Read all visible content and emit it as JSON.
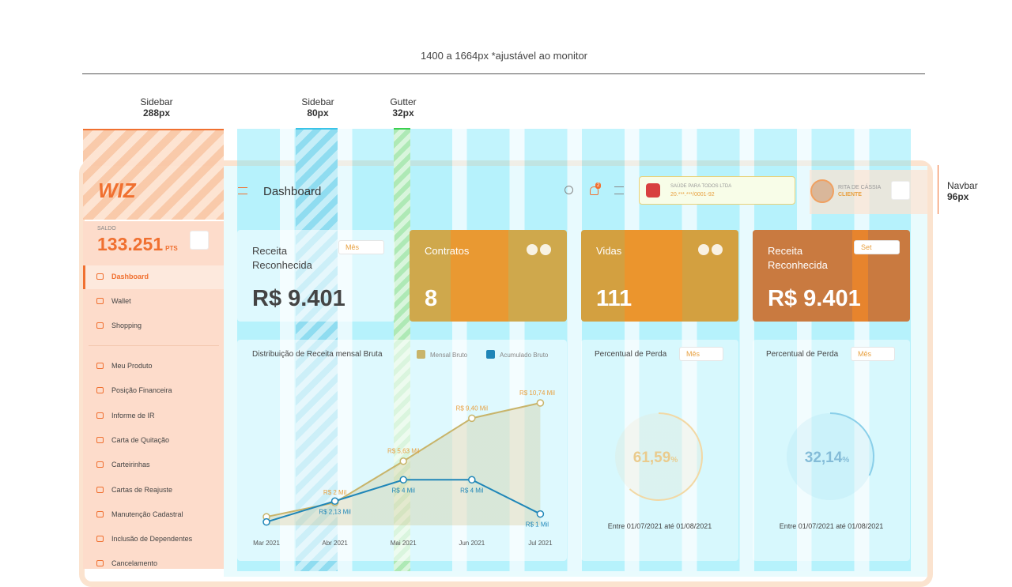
{
  "annotations": {
    "width": "1400 a 1664px *ajustável ao monitor",
    "sidebar_wide": {
      "label": "Sidebar",
      "size": "288px"
    },
    "sidebar_narrow": {
      "label": "Sidebar",
      "size": "80px"
    },
    "gutter": {
      "label": "Gutter",
      "size": "32px"
    },
    "navbar": {
      "label": "Navbar",
      "size": "96px"
    }
  },
  "sidebar": {
    "logo": "WIZ",
    "saldo_label": "SALDO",
    "saldo": "133.251",
    "saldo_unit": "PTS",
    "menu": [
      "Dashboard",
      "Wallet",
      "Shopping"
    ],
    "menu2": [
      "Meu Produto",
      "Posição Financeira",
      "Informe de IR",
      "Carta de Quitação",
      "Carteirinhas",
      "Cartas de Reajuste",
      "Manutenção Cadastral",
      "Inclusão de Dependentes",
      "Cancelamento"
    ]
  },
  "navbar": {
    "title": "Dashboard",
    "notifications": "2",
    "company": "SAÚDE PARA TODOS LTDA",
    "cnpj": "20.***.***/0001-92",
    "user": "RITA DE CÁSSIA",
    "role": "CLIENTE"
  },
  "cards": [
    {
      "title": "Receita Reconhecida",
      "value": "R$ 9.401",
      "select": "Mês"
    },
    {
      "title": "Contratos",
      "value": "8"
    },
    {
      "title": "Vidas",
      "value": "111"
    },
    {
      "title": "Receita Reconhecida",
      "value": "R$ 9.401",
      "select": "Set"
    }
  ],
  "chart_data": {
    "type": "line",
    "title": "Distribuição de Receita mensal Bruta",
    "categories": [
      "Mar 2021",
      "Abr 2021",
      "Mai 2021",
      "Jun 2021",
      "Jul 2021"
    ],
    "series": [
      {
        "name": "Mensal Bruto",
        "color": "#c8b46a",
        "values": [
          0.75,
          2,
          5.63,
          9.4,
          10.74
        ],
        "value_labels": [
          null,
          "R$ 2 Mil",
          "R$ 5,63 Mil",
          "R$ 9,40 Mil",
          "R$ 10,74 Mil"
        ]
      },
      {
        "name": "Acumulado Bruto",
        "color": "#1f86b8",
        "values": [
          0.3,
          2.13,
          4,
          4,
          1
        ],
        "value_labels": [
          null,
          "R$ 2,13 Mil",
          "R$ 4 Mil",
          "R$ 4 Mil",
          "R$ 1 Mil"
        ]
      }
    ]
  },
  "gauges": [
    {
      "title": "Percentual de Perda",
      "select": "Mês",
      "value": 61.59,
      "value_label": "61,59",
      "unit": "%",
      "color": "#e8b85a",
      "text_color": "#d9a030",
      "period": "Entre 01/07/2021 até 01/08/2021"
    },
    {
      "title": "Percentual de Perda",
      "select": "Mês",
      "value": 32.14,
      "value_label": "32,14",
      "unit": "%",
      "color": "#2aa8d8",
      "text_color": "#1f86b8",
      "period": "Entre 01/07/2021 até 01/08/2021"
    }
  ]
}
